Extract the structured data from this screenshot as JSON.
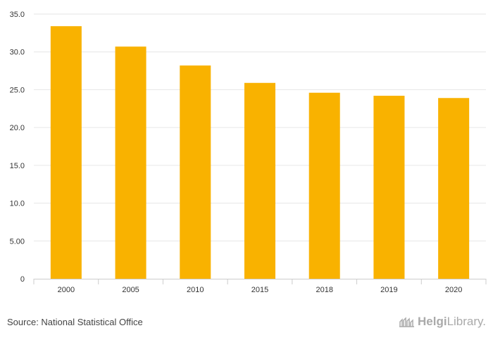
{
  "chart_data": {
    "type": "bar",
    "categories": [
      "2000",
      "2005",
      "2010",
      "2015",
      "2018",
      "2019",
      "2020"
    ],
    "values": [
      33.4,
      30.7,
      28.2,
      25.9,
      24.6,
      24.2,
      23.9
    ],
    "ylim": [
      0,
      35
    ],
    "yticks": [
      0,
      5,
      10,
      15,
      20,
      25,
      30,
      35
    ],
    "ytick_labels": [
      "0",
      "5.00",
      "10.0",
      "15.0",
      "20.0",
      "25.0",
      "30.0",
      "35.0"
    ],
    "bar_color": "#f9b200",
    "grid": true,
    "title": "",
    "xlabel": "",
    "ylabel": ""
  },
  "footer": {
    "source": "Source: National Statistical Office",
    "brand_left": "Helgi",
    "brand_right": "Library."
  }
}
